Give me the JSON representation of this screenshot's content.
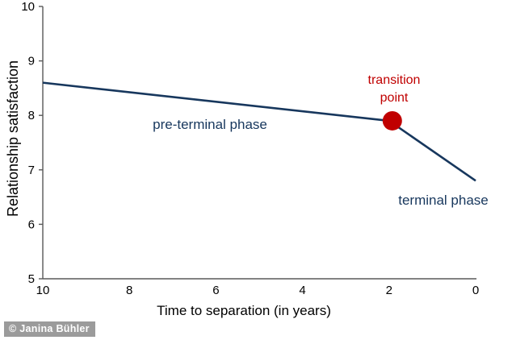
{
  "chart_data": {
    "type": "line",
    "title": "",
    "xlabel": "Time to separation (in years)",
    "ylabel": "Relationship satisfaction",
    "xlim": [
      10,
      0
    ],
    "ylim": [
      5,
      10
    ],
    "x_axis_reversed": true,
    "xticks": [
      10,
      8,
      6,
      4,
      2,
      0
    ],
    "yticks": [
      10,
      9,
      8,
      7,
      6,
      5
    ],
    "grid": false,
    "legend": "none",
    "series": [
      {
        "name": "pre-terminal phase",
        "x": [
          10,
          2
        ],
        "y": [
          8.6,
          7.9
        ],
        "color": "#17375d"
      },
      {
        "name": "terminal phase",
        "x": [
          2,
          0
        ],
        "y": [
          7.9,
          6.8
        ],
        "color": "#17375d"
      }
    ],
    "marker": {
      "label": "transition point",
      "x": 2,
      "y": 7.9,
      "color": "#c00000",
      "radius": 12
    }
  },
  "annotations": {
    "pre_terminal": "pre-terminal phase",
    "terminal": "terminal phase",
    "transition_line1": "transition",
    "transition_line2": "point"
  },
  "watermark": "© Janina Bühler",
  "colors": {
    "line": "#17375d",
    "phase_text": "#17375d",
    "transition_text": "#c00000",
    "marker": "#c00000",
    "axis": "#595959",
    "tick_text": "#000000",
    "watermark_bg": "#9b9b9b",
    "watermark_text": "#ffffff"
  }
}
